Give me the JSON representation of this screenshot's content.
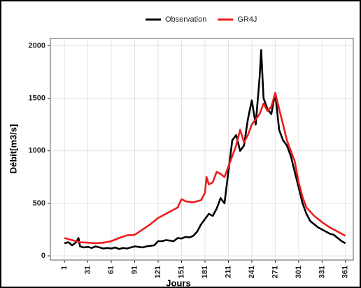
{
  "chart_data": {
    "type": "line",
    "xlabel": "Jours",
    "ylabel": "Débit[m3/s]",
    "series": [
      {
        "name": "Observation",
        "color": "#000000",
        "x": [
          1,
          6,
          11,
          16,
          19,
          21,
          26,
          31,
          36,
          41,
          46,
          51,
          56,
          61,
          66,
          71,
          76,
          81,
          86,
          91,
          96,
          101,
          106,
          111,
          116,
          121,
          126,
          131,
          136,
          141,
          146,
          151,
          156,
          161,
          166,
          171,
          176,
          181,
          186,
          191,
          196,
          201,
          206,
          211,
          216,
          221,
          226,
          231,
          236,
          241,
          246,
          251,
          253,
          256,
          261,
          266,
          271,
          276,
          281,
          286,
          291,
          296,
          301,
          306,
          311,
          316,
          321,
          326,
          331,
          336,
          341,
          346,
          351,
          356,
          361
        ],
        "values": [
          120,
          130,
          100,
          130,
          170,
          90,
          80,
          85,
          75,
          90,
          80,
          70,
          75,
          70,
          80,
          65,
          75,
          70,
          80,
          90,
          85,
          80,
          90,
          95,
          100,
          140,
          140,
          150,
          145,
          140,
          170,
          165,
          180,
          175,
          190,
          230,
          300,
          350,
          400,
          380,
          450,
          550,
          500,
          800,
          1100,
          1150,
          1000,
          1050,
          1300,
          1480,
          1250,
          1700,
          1960,
          1500,
          1400,
          1350,
          1550,
          1200,
          1100,
          1050,
          950,
          800,
          650,
          500,
          400,
          330,
          300,
          270,
          250,
          230,
          210,
          200,
          170,
          140,
          120
        ]
      },
      {
        "name": "GR4J",
        "color": "#ee1c1c",
        "x": [
          1,
          11,
          21,
          31,
          41,
          51,
          61,
          71,
          81,
          91,
          101,
          111,
          121,
          131,
          141,
          146,
          151,
          156,
          166,
          176,
          181,
          183,
          186,
          191,
          196,
          201,
          206,
          211,
          216,
          221,
          226,
          231,
          236,
          241,
          246,
          251,
          256,
          261,
          266,
          271,
          276,
          281,
          286,
          291,
          296,
          301,
          306,
          311,
          321,
          331,
          341,
          351,
          361
        ],
        "values": [
          170,
          150,
          130,
          125,
          120,
          125,
          140,
          170,
          195,
          200,
          250,
          300,
          360,
          400,
          440,
          460,
          540,
          520,
          510,
          530,
          600,
          750,
          680,
          700,
          800,
          780,
          750,
          850,
          950,
          1050,
          1200,
          1080,
          1150,
          1250,
          1300,
          1350,
          1450,
          1380,
          1420,
          1550,
          1400,
          1250,
          1100,
          1000,
          900,
          700,
          560,
          460,
          380,
          320,
          270,
          230,
          190
        ]
      }
    ],
    "xlim": [
      -17,
      371
    ],
    "xticks": [
      1,
      31,
      61,
      91,
      121,
      151,
      181,
      211,
      241,
      271,
      301,
      331,
      361
    ],
    "ylim": [
      -40,
      2070
    ],
    "yticks": [
      0,
      500,
      1000,
      1500,
      2000
    ],
    "grid": true,
    "legend": "top"
  }
}
